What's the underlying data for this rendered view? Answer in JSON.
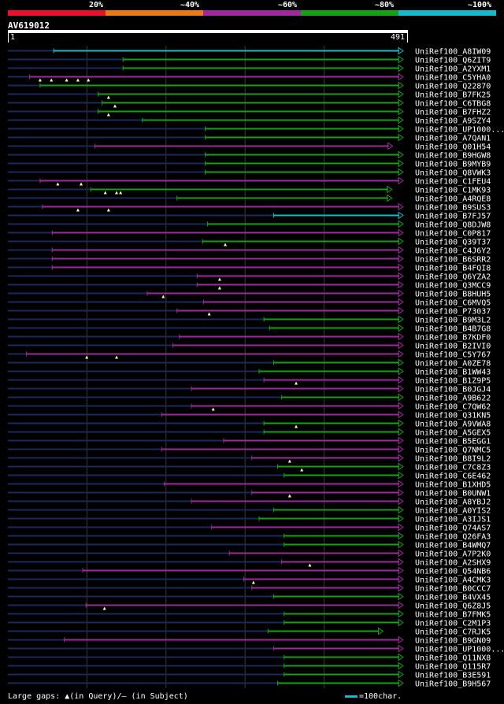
{
  "legend": {
    "labels": [
      "20%",
      "~40%",
      "~60%",
      "~80%",
      "~100%"
    ],
    "colors": [
      "#e8102a",
      "#e87a18",
      "#9c2a9c",
      "#18a018",
      "#18b8c8"
    ]
  },
  "query": {
    "id": "AV619012",
    "start": "1",
    "end": "491"
  },
  "footer": {
    "gaps_text": "Large gaps: ▲(in Query)/— (in Subject)",
    "scale_text": "=100char."
  },
  "chart_data": {
    "type": "alignment",
    "query_length": 491,
    "hits": [
      {
        "name": "UniRef100_A8IW09",
        "start": 57,
        "end": 491,
        "color": "#18b8c8",
        "gaps": []
      },
      {
        "name": "UniRef100_Q6ZIT9",
        "start": 143,
        "end": 491,
        "color": "#18a018",
        "gaps": []
      },
      {
        "name": "UniRef100_A2YXM1",
        "start": 143,
        "end": 491,
        "color": "#18a018",
        "gaps": []
      },
      {
        "name": "UniRef100_C5YHA0",
        "start": 27,
        "end": 491,
        "color": "#9c2a9c",
        "gaps": [
          40,
          54,
          73,
          87,
          100
        ]
      },
      {
        "name": "UniRef100_Q22870",
        "start": 40,
        "end": 491,
        "color": "#18a018",
        "gaps": []
      },
      {
        "name": "UniRef100_B7FK25",
        "start": 112,
        "end": 491,
        "color": "#18a018",
        "gaps": [
          125
        ]
      },
      {
        "name": "UniRef100_C6TBG8",
        "start": 117,
        "end": 491,
        "color": "#18a018",
        "gaps": [
          133
        ]
      },
      {
        "name": "UniRef100_B7FHZ2",
        "start": 112,
        "end": 491,
        "color": "#18a018",
        "gaps": [
          125
        ]
      },
      {
        "name": "UniRef100_A9SZY4",
        "start": 167,
        "end": 491,
        "color": "#18a018",
        "gaps": []
      },
      {
        "name": "UniRef100_UP1000...",
        "start": 245,
        "end": 491,
        "color": "#18a018",
        "gaps": []
      },
      {
        "name": "UniRef100_A7QAN1",
        "start": 245,
        "end": 491,
        "color": "#18a018",
        "gaps": []
      },
      {
        "name": "UniRef100_Q01H54",
        "start": 108,
        "end": 478,
        "color": "#9c2a9c",
        "gaps": []
      },
      {
        "name": "UniRef100_B9HGW8",
        "start": 245,
        "end": 491,
        "color": "#18a018",
        "gaps": []
      },
      {
        "name": "UniRef100_B9MYB9",
        "start": 245,
        "end": 491,
        "color": "#18a018",
        "gaps": []
      },
      {
        "name": "UniRef100_Q8VWK3",
        "start": 245,
        "end": 491,
        "color": "#18a018",
        "gaps": []
      },
      {
        "name": "UniRef100_C1FEU4",
        "start": 40,
        "end": 491,
        "color": "#9c2a9c",
        "gaps": [
          62,
          91
        ]
      },
      {
        "name": "UniRef100_C1MK93",
        "start": 103,
        "end": 477,
        "color": "#18a018",
        "gaps": [
          121,
          135,
          140
        ]
      },
      {
        "name": "UniRef100_A4RQE8",
        "start": 210,
        "end": 477,
        "color": "#18a018",
        "gaps": []
      },
      {
        "name": "UniRef100_B9SUS3",
        "start": 43,
        "end": 491,
        "color": "#9c2a9c",
        "gaps": [
          87,
          125
        ]
      },
      {
        "name": "UniRef100_B7FJ57",
        "start": 330,
        "end": 491,
        "color": "#18b8c8",
        "gaps": []
      },
      {
        "name": "UniRef100_Q8DJW8",
        "start": 248,
        "end": 491,
        "color": "#18a018",
        "gaps": []
      },
      {
        "name": "UniRef100_C0P817",
        "start": 55,
        "end": 491,
        "color": "#9c2a9c",
        "gaps": []
      },
      {
        "name": "UniRef100_Q39T37",
        "start": 242,
        "end": 491,
        "color": "#18a018",
        "gaps": [
          270
        ]
      },
      {
        "name": "UniRef100_C4J6Y2",
        "start": 55,
        "end": 491,
        "color": "#9c2a9c",
        "gaps": []
      },
      {
        "name": "UniRef100_B6SRR2",
        "start": 55,
        "end": 491,
        "color": "#9c2a9c",
        "gaps": []
      },
      {
        "name": "UniRef100_B4FQI8",
        "start": 55,
        "end": 491,
        "color": "#9c2a9c",
        "gaps": []
      },
      {
        "name": "UniRef100_Q6YZA2",
        "start": 235,
        "end": 491,
        "color": "#9c2a9c",
        "gaps": [
          263
        ]
      },
      {
        "name": "UniRef100_Q3MCC9",
        "start": 235,
        "end": 491,
        "color": "#9c2a9c",
        "gaps": [
          263
        ]
      },
      {
        "name": "UniRef100_B8HUH5",
        "start": 173,
        "end": 491,
        "color": "#9c2a9c",
        "gaps": [
          193
        ]
      },
      {
        "name": "UniRef100_C6MVQ5",
        "start": 243,
        "end": 491,
        "color": "#9c2a9c",
        "gaps": []
      },
      {
        "name": "UniRef100_P73037",
        "start": 210,
        "end": 491,
        "color": "#9c2a9c",
        "gaps": [
          250
        ]
      },
      {
        "name": "UniRef100_B9M3L2",
        "start": 318,
        "end": 491,
        "color": "#18a018",
        "gaps": []
      },
      {
        "name": "UniRef100_B4B7G8",
        "start": 325,
        "end": 491,
        "color": "#18a018",
        "gaps": []
      },
      {
        "name": "UniRef100_B7KDF0",
        "start": 213,
        "end": 491,
        "color": "#9c2a9c",
        "gaps": []
      },
      {
        "name": "UniRef100_B2IVI0",
        "start": 205,
        "end": 491,
        "color": "#9c2a9c",
        "gaps": []
      },
      {
        "name": "UniRef100_C5Y767",
        "start": 23,
        "end": 491,
        "color": "#9c2a9c",
        "gaps": [
          98,
          135
        ]
      },
      {
        "name": "UniRef100_A0ZE78",
        "start": 330,
        "end": 491,
        "color": "#18a018",
        "gaps": []
      },
      {
        "name": "UniRef100_B1WW43",
        "start": 312,
        "end": 491,
        "color": "#18a018",
        "gaps": []
      },
      {
        "name": "UniRef100_B1Z9P5",
        "start": 318,
        "end": 491,
        "color": "#9c2a9c",
        "gaps": [
          358
        ]
      },
      {
        "name": "UniRef100_B0JGJ4",
        "start": 228,
        "end": 491,
        "color": "#9c2a9c",
        "gaps": []
      },
      {
        "name": "UniRef100_A9B622",
        "start": 340,
        "end": 491,
        "color": "#18a018",
        "gaps": []
      },
      {
        "name": "UniRef100_C7QW62",
        "start": 228,
        "end": 491,
        "color": "#9c2a9c",
        "gaps": [
          255
        ]
      },
      {
        "name": "UniRef100_Q31KN5",
        "start": 191,
        "end": 491,
        "color": "#9c2a9c",
        "gaps": []
      },
      {
        "name": "UniRef100_A9VWA8",
        "start": 318,
        "end": 491,
        "color": "#18a018",
        "gaps": [
          358
        ]
      },
      {
        "name": "UniRef100_A5GEX5",
        "start": 318,
        "end": 491,
        "color": "#18a018",
        "gaps": []
      },
      {
        "name": "UniRef100_B5EGG1",
        "start": 268,
        "end": 491,
        "color": "#9c2a9c",
        "gaps": []
      },
      {
        "name": "UniRef100_Q7NMC5",
        "start": 191,
        "end": 491,
        "color": "#9c2a9c",
        "gaps": []
      },
      {
        "name": "UniRef100_B8I9L2",
        "start": 303,
        "end": 491,
        "color": "#9c2a9c",
        "gaps": [
          350
        ]
      },
      {
        "name": "UniRef100_C7C8Z3",
        "start": 335,
        "end": 491,
        "color": "#18a018",
        "gaps": [
          365
        ]
      },
      {
        "name": "UniRef100_C6E462",
        "start": 343,
        "end": 491,
        "color": "#18a018",
        "gaps": []
      },
      {
        "name": "UniRef100_B1XHD5",
        "start": 194,
        "end": 491,
        "color": "#9c2a9c",
        "gaps": []
      },
      {
        "name": "UniRef100_B0UNW1",
        "start": 303,
        "end": 491,
        "color": "#9c2a9c",
        "gaps": [
          350
        ]
      },
      {
        "name": "UniRef100_A8YBJ2",
        "start": 228,
        "end": 491,
        "color": "#9c2a9c",
        "gaps": []
      },
      {
        "name": "UniRef100_A0YIS2",
        "start": 330,
        "end": 491,
        "color": "#18a018",
        "gaps": []
      },
      {
        "name": "UniRef100_A3IJS1",
        "start": 312,
        "end": 491,
        "color": "#18a018",
        "gaps": []
      },
      {
        "name": "UniRef100_Q74AS7",
        "start": 253,
        "end": 491,
        "color": "#9c2a9c",
        "gaps": []
      },
      {
        "name": "UniRef100_Q26FA3",
        "start": 343,
        "end": 491,
        "color": "#18a018",
        "gaps": []
      },
      {
        "name": "UniRef100_B4WMQ7",
        "start": 343,
        "end": 491,
        "color": "#18a018",
        "gaps": []
      },
      {
        "name": "UniRef100_A7P2K0",
        "start": 275,
        "end": 491,
        "color": "#9c2a9c",
        "gaps": []
      },
      {
        "name": "UniRef100_A2SHX9",
        "start": 340,
        "end": 491,
        "color": "#9c2a9c",
        "gaps": [
          375
        ]
      },
      {
        "name": "UniRef100_Q54NB6",
        "start": 93,
        "end": 491,
        "color": "#9c2a9c",
        "gaps": []
      },
      {
        "name": "UniRef100_A4CMK3",
        "start": 293,
        "end": 491,
        "color": "#9c2a9c",
        "gaps": [
          305
        ]
      },
      {
        "name": "UniRef100_B0CCC7",
        "start": 303,
        "end": 491,
        "color": "#9c2a9c",
        "gaps": []
      },
      {
        "name": "UniRef100_B4VX45",
        "start": 330,
        "end": 491,
        "color": "#18a018",
        "gaps": []
      },
      {
        "name": "UniRef100_Q6Z8J5",
        "start": 97,
        "end": 491,
        "color": "#9c2a9c",
        "gaps": [
          120
        ]
      },
      {
        "name": "UniRef100_B7FMK5",
        "start": 343,
        "end": 491,
        "color": "#18a018",
        "gaps": []
      },
      {
        "name": "UniRef100_C2M1P3",
        "start": 343,
        "end": 491,
        "color": "#18a018",
        "gaps": []
      },
      {
        "name": "UniRef100_C7RJK5",
        "start": 323,
        "end": 466,
        "color": "#18a018",
        "gaps": []
      },
      {
        "name": "UniRef100_B9GN09",
        "start": 70,
        "end": 491,
        "color": "#9c2a9c",
        "gaps": []
      },
      {
        "name": "UniRef100_UP1000...",
        "start": 330,
        "end": 491,
        "color": "#9c2a9c",
        "gaps": []
      },
      {
        "name": "UniRef100_Q11NX8",
        "start": 343,
        "end": 491,
        "color": "#18a018",
        "gaps": []
      },
      {
        "name": "UniRef100_Q115R7",
        "start": 343,
        "end": 491,
        "color": "#18a018",
        "gaps": []
      },
      {
        "name": "UniRef100_B3E591",
        "start": 343,
        "end": 491,
        "color": "#18a018",
        "gaps": []
      },
      {
        "name": "UniRef100_B9H567",
        "start": 335,
        "end": 491,
        "color": "#18a018",
        "gaps": []
      }
    ]
  }
}
